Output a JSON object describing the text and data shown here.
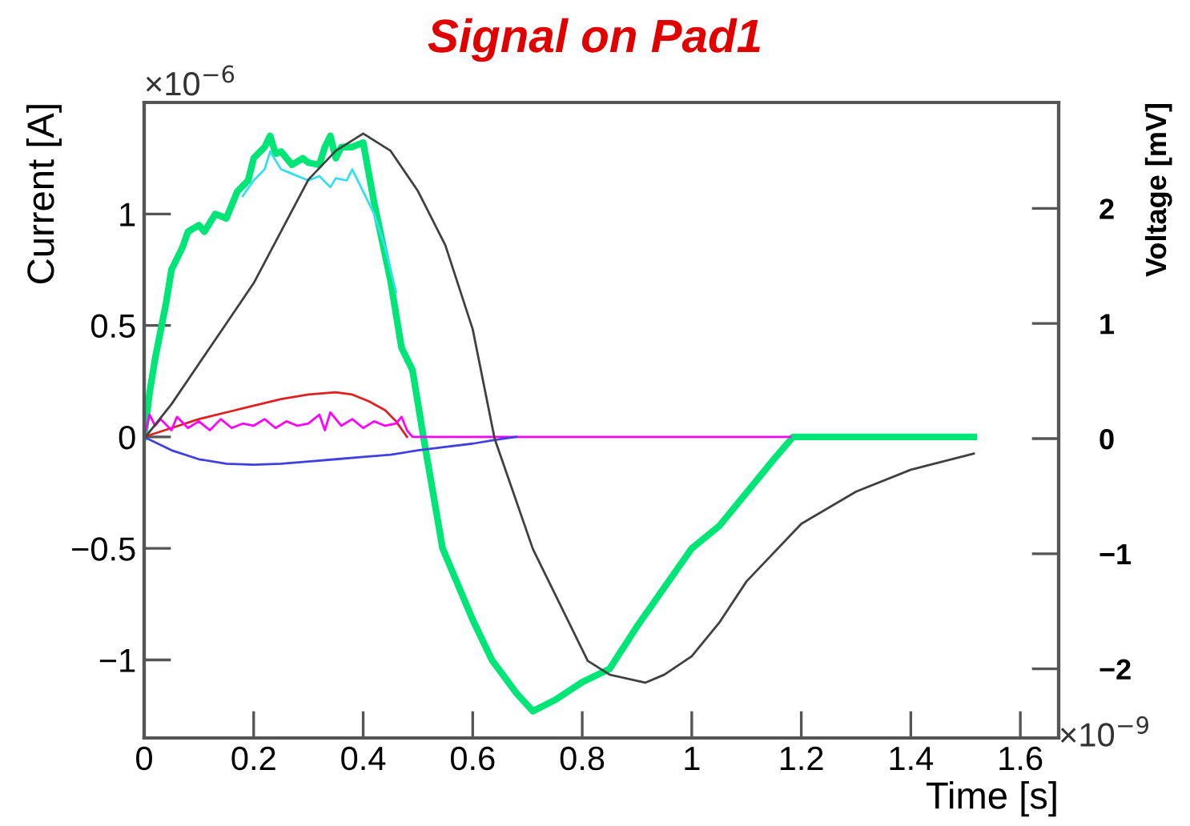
{
  "chart_data": {
    "type": "line",
    "title": "Signal on Pad1",
    "xlabel": "Time [s]",
    "ylabel": "Current [A]",
    "y2label": "Voltage [mV]",
    "annotations": [
      "×10$^{−6}$",
      "×10$^{−9}$"
    ],
    "xlim": [
      0,
      1.67
    ],
    "ylim": [
      -1.35,
      1.5
    ],
    "y2lim": [
      -2.6,
      2.92
    ],
    "xticks": [
      0,
      0.2,
      0.4,
      0.6,
      0.8,
      1,
      1.2,
      1.4,
      1.6
    ],
    "yticks": [
      {
        "value": -1,
        "label": "−1"
      },
      {
        "value": -0.5,
        "label": "−0.5"
      },
      0,
      0.5,
      1
    ],
    "y2ticks": [
      {
        "value": -2,
        "label": "−2"
      },
      {
        "value": -1,
        "label": "−1"
      },
      0,
      1,
      2
    ],
    "grid": false,
    "legend": false,
    "marker": "none",
    "line_style": "solid",
    "series": [
      {
        "color": "#00e676",
        "x": [
          0,
          0.01,
          0.02,
          0.04,
          0.05,
          0.07,
          0.08,
          0.1,
          0.11,
          0.13,
          0.15,
          0.17,
          0.19,
          0.2,
          0.22,
          0.23,
          0.24,
          0.25,
          0.27,
          0.29,
          0.3,
          0.32,
          0.33,
          0.34,
          0.35,
          0.36,
          0.38,
          0.4,
          0.42,
          0.45,
          0.47,
          0.49,
          0.51,
          0.545,
          0.6,
          0.635,
          0.68,
          0.71,
          0.75,
          0.8,
          0.85,
          0.9,
          1.0,
          1.05,
          1.1,
          1.15,
          1.185,
          1.3,
          1.4,
          1.515
        ],
        "values": [
          0,
          0.2,
          0.35,
          0.6,
          0.75,
          0.85,
          0.92,
          0.95,
          0.92,
          1.0,
          0.98,
          1.1,
          1.15,
          1.25,
          1.3,
          1.35,
          1.27,
          1.28,
          1.22,
          1.25,
          1.23,
          1.22,
          1.3,
          1.35,
          1.25,
          1.3,
          1.3,
          1.32,
          1.05,
          0.7,
          0.4,
          0.3,
          0,
          -0.5,
          -0.82,
          -1,
          -1.15,
          -1.23,
          -1.18,
          -1.1,
          -1.04,
          -0.85,
          -0.5,
          -0.4,
          -0.25,
          -0.1,
          0,
          0,
          0,
          0
        ]
      },
      {
        "color": "#33e0f0",
        "x": [
          0.18,
          0.2,
          0.22,
          0.23,
          0.25,
          0.27,
          0.3,
          0.32,
          0.34,
          0.35,
          0.37,
          0.38,
          0.4,
          0.42,
          0.44,
          0.46
        ],
        "values": [
          1.08,
          1.15,
          1.2,
          1.28,
          1.2,
          1.18,
          1.15,
          1.17,
          1.12,
          1.16,
          1.15,
          1.2,
          1.1,
          1.0,
          0.85,
          0.65
        ]
      },
      {
        "color": "#e02020",
        "x": [
          0,
          0.05,
          0.1,
          0.15,
          0.2,
          0.25,
          0.3,
          0.35,
          0.38,
          0.41,
          0.44,
          0.46,
          0.48
        ],
        "values": [
          0,
          0.04,
          0.08,
          0.11,
          0.14,
          0.17,
          0.19,
          0.2,
          0.19,
          0.16,
          0.12,
          0.07,
          0
        ]
      },
      {
        "color": "#ff00ff",
        "x": [
          0,
          0.01,
          0.02,
          0.03,
          0.05,
          0.06,
          0.08,
          0.1,
          0.12,
          0.14,
          0.16,
          0.18,
          0.2,
          0.22,
          0.24,
          0.26,
          0.28,
          0.3,
          0.32,
          0.33,
          0.34,
          0.36,
          0.38,
          0.4,
          0.42,
          0.44,
          0.46,
          0.47,
          0.48,
          0.49,
          0.7,
          1.0,
          1.18
        ],
        "values": [
          0,
          0.1,
          0.05,
          0.08,
          0.03,
          0.09,
          0.04,
          0.07,
          0.03,
          0.08,
          0.04,
          0.06,
          0.05,
          0.08,
          0.04,
          0.07,
          0.05,
          0.06,
          0.1,
          0.03,
          0.11,
          0.05,
          0.08,
          0.04,
          0.07,
          0.05,
          0.06,
          0.09,
          0.03,
          0,
          0,
          0,
          0
        ]
      },
      {
        "color": "#4040e0",
        "x": [
          0,
          0.05,
          0.1,
          0.15,
          0.2,
          0.25,
          0.3,
          0.35,
          0.4,
          0.45,
          0.5,
          0.55,
          0.6,
          0.65,
          0.68
        ],
        "values": [
          0,
          -0.06,
          -0.1,
          -0.12,
          -0.125,
          -0.12,
          -0.11,
          -0.1,
          -0.09,
          -0.08,
          -0.06,
          -0.045,
          -0.03,
          -0.01,
          0
        ]
      },
      {
        "color": "#404040",
        "axis": "y2",
        "x": [
          0,
          0.05,
          0.1,
          0.15,
          0.2,
          0.25,
          0.3,
          0.35,
          0.4,
          0.45,
          0.5,
          0.55,
          0.6,
          0.64,
          0.71,
          0.81,
          0.85,
          0.915,
          0.95,
          1.0,
          1.05,
          1.1,
          1.2,
          1.3,
          1.4,
          1.515
        ],
        "values": [
          0,
          0.3,
          0.65,
          1.0,
          1.35,
          1.8,
          2.25,
          2.5,
          2.65,
          2.5,
          2.15,
          1.68,
          0.95,
          0,
          -0.96,
          -1.93,
          -2.05,
          -2.12,
          -2.05,
          -1.89,
          -1.6,
          -1.24,
          -0.74,
          -0.46,
          -0.27,
          -0.13
        ]
      }
    ]
  }
}
